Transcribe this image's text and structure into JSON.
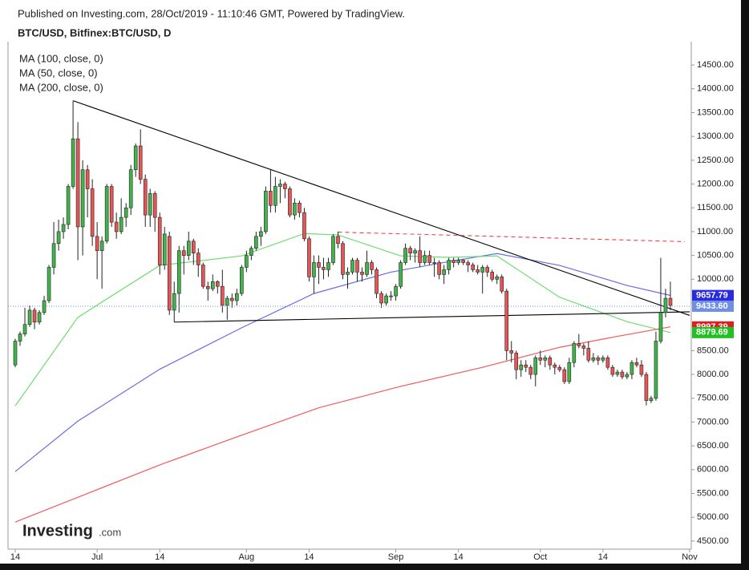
{
  "chart_data": {
    "type": "candlestick",
    "published": "Published on Investing.com, 28/Oct/2019 - 11:10:46 GMT, Powered by TradingView.",
    "title": "BTC/USD, Bitfinex:BTC/USD, D",
    "logo": {
      "name": "Investing",
      "suffix": ".com"
    },
    "up_color": "#41b549",
    "down_color": "#e95454",
    "open": [
      8200,
      8700,
      8850,
      9050,
      9350,
      9100,
      9300,
      9550,
      10250,
      10750,
      11000,
      11150,
      11950,
      12950,
      11100,
      12300,
      11900,
      10900,
      10600,
      10800,
      11950,
      11200,
      11000,
      11300,
      11500,
      12300,
      12800,
      12100,
      11350,
      11800,
      11300,
      10300,
      10900,
      9350,
      9700,
      10600,
      10500,
      10800,
      10550,
      10300,
      9850,
      9800,
      9950,
      9850,
      9450,
      9600,
      9550,
      9700,
      10250,
      10500,
      10650,
      10900,
      11000,
      11850,
      11550,
      11950,
      12000,
      11900,
      11350,
      11600,
      11400,
      10850,
      10050,
      10350,
      10250,
      10200,
      10350,
      10900,
      10750,
      10100,
      10150,
      10400,
      10150,
      10100,
      10350,
      10200,
      9700,
      9500,
      9650,
      9650,
      9850,
      10350,
      10650,
      10550,
      10600,
      10350,
      10500,
      10350,
      10350,
      10100,
      10200,
      10400,
      10350,
      10400,
      10350,
      10300,
      10200,
      10150,
      10250,
      10150,
      10000,
      10050,
      9750,
      8500,
      8450,
      8100,
      8200,
      8150,
      8000,
      8350,
      8300,
      8350,
      8200,
      8150,
      8100,
      7850,
      8250,
      8650,
      8600,
      8550,
      8300,
      8350,
      8300,
      8350,
      8150,
      8000,
      8050,
      7950,
      8000,
      8250,
      8200,
      8000,
      7450,
      7500,
      8700,
      9300,
      9600
    ],
    "high": [
      8750,
      8900,
      9400,
      9450,
      9400,
      9350,
      9650,
      10300,
      11200,
      11250,
      11300,
      12000,
      13750,
      13300,
      12500,
      12400,
      12100,
      11200,
      10900,
      12000,
      12000,
      11400,
      11700,
      11600,
      12400,
      12850,
      13150,
      12200,
      11900,
      11850,
      11400,
      11100,
      11000,
      9950,
      10700,
      10700,
      11000,
      10850,
      10650,
      10350,
      9950,
      10100,
      9980,
      10200,
      9650,
      9700,
      9800,
      10300,
      10600,
      10700,
      11000,
      11100,
      11950,
      12300,
      12150,
      12100,
      12050,
      11950,
      11700,
      11650,
      11500,
      10900,
      10500,
      10500,
      10450,
      10450,
      10950,
      11000,
      10800,
      10250,
      10450,
      10450,
      10250,
      10600,
      10400,
      10250,
      9750,
      9700,
      9750,
      9900,
      10400,
      10750,
      10700,
      10650,
      10900,
      10600,
      10600,
      10450,
      10400,
      10300,
      10450,
      10450,
      10450,
      10420,
      10400,
      10350,
      10300,
      10300,
      10300,
      10200,
      10100,
      10100,
      9800,
      8700,
      8500,
      8300,
      8300,
      8200,
      8400,
      8500,
      8400,
      8400,
      8250,
      8200,
      8150,
      8350,
      8700,
      8850,
      8650,
      8700,
      8450,
      8400,
      8400,
      8400,
      8200,
      8100,
      8100,
      8050,
      8300,
      8350,
      8300,
      8050,
      7550,
      8900,
      10450,
      9800,
      9950
    ],
    "low": [
      8150,
      8600,
      8800,
      9000,
      8950,
      9050,
      9250,
      9500,
      10100,
      10600,
      10850,
      11050,
      11900,
      10400,
      10500,
      11300,
      10700,
      10000,
      9800,
      10750,
      11100,
      10850,
      10950,
      11100,
      11350,
      12150,
      12000,
      11100,
      11100,
      11000,
      10100,
      10200,
      9250,
      9100,
      9300,
      10100,
      10400,
      10300,
      10050,
      9800,
      9550,
      9750,
      9700,
      9300,
      9150,
      9400,
      9450,
      9650,
      10150,
      10400,
      10600,
      10700,
      10950,
      11400,
      11400,
      11600,
      11700,
      11300,
      11250,
      11300,
      10800,
      9950,
      9700,
      9900,
      10000,
      10050,
      10300,
      10650,
      10000,
      9800,
      10100,
      9950,
      9950,
      10050,
      10100,
      9600,
      9400,
      9450,
      9550,
      9550,
      9800,
      10300,
      10400,
      10350,
      10250,
      10300,
      10300,
      10050,
      10000,
      9900,
      10100,
      10250,
      10300,
      10300,
      10150,
      10150,
      10100,
      9700,
      10050,
      9950,
      9900,
      9700,
      8300,
      8250,
      7900,
      7950,
      8050,
      7900,
      7750,
      8200,
      8150,
      8100,
      8000,
      8050,
      7800,
      7800,
      8150,
      8550,
      8400,
      8250,
      8250,
      8200,
      8250,
      8100,
      7950,
      7950,
      7900,
      7900,
      7900,
      8150,
      7950,
      7350,
      7400,
      7450,
      8650,
      9200,
      9350
    ],
    "close": [
      8700,
      8850,
      9050,
      9350,
      9100,
      9300,
      9550,
      10250,
      10750,
      11000,
      11150,
      11950,
      12950,
      11100,
      12300,
      11900,
      10900,
      10600,
      10800,
      11950,
      11200,
      11000,
      11300,
      11500,
      12300,
      12800,
      12100,
      11350,
      11800,
      11300,
      10300,
      10950,
      9350,
      9700,
      10600,
      10500,
      10800,
      10550,
      10300,
      9850,
      9800,
      9950,
      9850,
      9450,
      9600,
      9550,
      9700,
      10250,
      10500,
      10650,
      10900,
      11000,
      11850,
      11550,
      11950,
      12000,
      11900,
      11350,
      11600,
      11400,
      10850,
      10050,
      10350,
      10250,
      10200,
      10350,
      10900,
      10750,
      10100,
      10150,
      10400,
      10150,
      10100,
      10350,
      10200,
      9700,
      9500,
      9650,
      9650,
      9850,
      10350,
      10650,
      10550,
      10600,
      10350,
      10500,
      10350,
      10350,
      10100,
      10200,
      10400,
      10350,
      10400,
      10350,
      10300,
      10200,
      10150,
      10250,
      10150,
      10000,
      10050,
      9750,
      8500,
      8450,
      8100,
      8200,
      8150,
      8000,
      8350,
      8300,
      8350,
      8200,
      8150,
      8100,
      7850,
      8250,
      8650,
      8600,
      8550,
      8300,
      8350,
      8300,
      8350,
      8150,
      8000,
      8050,
      7950,
      8000,
      8250,
      8200,
      8000,
      7450,
      7500,
      8700,
      9300,
      9600,
      9450
    ],
    "series": [
      {
        "name": "MA (100, close, 0)",
        "color": "#6b6be6",
        "x": [
          0,
          13,
          30,
          47,
          62,
          78,
          90,
          100,
          113,
          127,
          136
        ],
        "values": [
          5960,
          7020,
          8110,
          8980,
          9700,
          10150,
          10370,
          10540,
          10290,
          9870,
          9660
        ]
      },
      {
        "name": "MA (50, close, 0)",
        "color": "#6fdc6f",
        "x": [
          0,
          13,
          30,
          47,
          60,
          67,
          80,
          90,
          100,
          113,
          127,
          136
        ],
        "values": [
          7340,
          9200,
          10290,
          10490,
          10960,
          10930,
          10490,
          10460,
          10490,
          9620,
          9110,
          8880
        ]
      },
      {
        "name": "MA (200, close, 0)",
        "color": "#f05a5a",
        "x": [
          0,
          15,
          30,
          45,
          63,
          80,
          97,
          113,
          125,
          136
        ],
        "values": [
          4900,
          5500,
          6100,
          6650,
          7300,
          7750,
          8150,
          8570,
          8800,
          9000
        ]
      }
    ],
    "trendlines": [
      {
        "color": "#000000",
        "dashed": false,
        "x": [
          12,
          140
        ],
        "values": [
          13750,
          9240
        ]
      },
      {
        "color": "#000000",
        "dashed": false,
        "x": [
          33,
          140
        ],
        "values": [
          9100,
          9315
        ]
      },
      {
        "color": "#e84545",
        "dashed": true,
        "x": [
          67,
          139
        ],
        "values": [
          10990,
          10790
        ]
      }
    ],
    "price_labels": [
      {
        "value": 9657.79,
        "color": "#2a2ae0"
      },
      {
        "value": 9433.6,
        "label": "9433.60",
        "color": "#6e8fe4",
        "last": true
      },
      {
        "value": 8997.39,
        "color": "#e01e1e"
      },
      {
        "value": 8879.69,
        "color": "#22c022"
      }
    ],
    "xlim": [
      -1.5,
      140
    ],
    "ylim": [
      4330,
      14990
    ],
    "xticks": [
      {
        "value": 0,
        "label": "14"
      },
      {
        "value": 17,
        "label": "Jul"
      },
      {
        "value": 30,
        "label": "14"
      },
      {
        "value": 48,
        "label": "Aug"
      },
      {
        "value": 61,
        "label": "14"
      },
      {
        "value": 79,
        "label": "Sep"
      },
      {
        "value": 92,
        "label": "14"
      },
      {
        "value": 109,
        "label": "Oct"
      },
      {
        "value": 122,
        "label": "14"
      },
      {
        "value": 140,
        "label": "Nov"
      }
    ],
    "yticks": [
      {
        "value": 4500,
        "label": "4500.00"
      },
      {
        "value": 5000,
        "label": "5000.00"
      },
      {
        "value": 5500,
        "label": "5500.00"
      },
      {
        "value": 6000,
        "label": "6000.00"
      },
      {
        "value": 6500,
        "label": "6500.00"
      },
      {
        "value": 7000,
        "label": "7000.00"
      },
      {
        "value": 7500,
        "label": "7500.00"
      },
      {
        "value": 8000,
        "label": "8000.00"
      },
      {
        "value": 8500,
        "label": "8500.00"
      },
      {
        "value": 9000,
        "label": "9000.00"
      },
      {
        "value": 9500,
        "label": "9500.00"
      },
      {
        "value": 10000,
        "label": "10000.00"
      },
      {
        "value": 10500,
        "label": "10500.00"
      },
      {
        "value": 11000,
        "label": "11000.00"
      },
      {
        "value": 11500,
        "label": "11500.00"
      },
      {
        "value": 12000,
        "label": "12000.00"
      },
      {
        "value": 12500,
        "label": "12500.00"
      },
      {
        "value": 13000,
        "label": "13000.00"
      },
      {
        "value": 13500,
        "label": "13500.00"
      },
      {
        "value": 14000,
        "label": "14000.00"
      },
      {
        "value": 14500,
        "label": "14500.00"
      }
    ]
  }
}
